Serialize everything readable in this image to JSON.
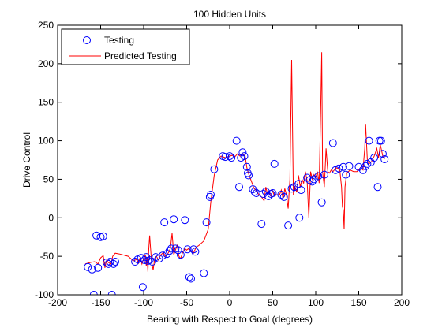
{
  "chart_data": {
    "type": "scatter",
    "title": "100 Hidden Units",
    "xlabel": "Bearing with Respect to Goal (degrees)",
    "ylabel": "Drive Control",
    "xlim": [
      -200,
      200
    ],
    "ylim": [
      -100,
      250
    ],
    "xticks": [
      -200,
      -150,
      -100,
      -50,
      0,
      50,
      100,
      150,
      200
    ],
    "yticks": [
      -100,
      -50,
      0,
      50,
      100,
      150,
      200,
      250
    ],
    "grid": false,
    "legend_position": "top-left",
    "series": [
      {
        "name": "Testing",
        "mark": "circle",
        "color": "#0000ff",
        "points": [
          [
            -165,
            -64
          ],
          [
            -160,
            -67
          ],
          [
            -158,
            -100
          ],
          [
            -155,
            -23
          ],
          [
            -153,
            -65
          ],
          [
            -150,
            -25
          ],
          [
            -147,
            -24
          ],
          [
            -143,
            -58
          ],
          [
            -141,
            -60
          ],
          [
            -139,
            -57
          ],
          [
            -137,
            -100
          ],
          [
            -135,
            -60
          ],
          [
            -133,
            -57
          ],
          [
            -110,
            -57
          ],
          [
            -107,
            -54
          ],
          [
            -103,
            -52
          ],
          [
            -101,
            -90
          ],
          [
            -99,
            -55
          ],
          [
            -97,
            -51
          ],
          [
            -95,
            -56
          ],
          [
            -93,
            -55
          ],
          [
            -90,
            -57
          ],
          [
            -86,
            -51
          ],
          [
            -82,
            -53
          ],
          [
            -78,
            -49
          ],
          [
            -76,
            -6
          ],
          [
            -73,
            -47
          ],
          [
            -70,
            -43
          ],
          [
            -68,
            -40
          ],
          [
            -65,
            -2
          ],
          [
            -63,
            -40
          ],
          [
            -60,
            -42
          ],
          [
            -57,
            -48
          ],
          [
            -52,
            -3
          ],
          [
            -49,
            -41
          ],
          [
            -47,
            -77
          ],
          [
            -45,
            -79
          ],
          [
            -42,
            -41
          ],
          [
            -40,
            -44
          ],
          [
            -30,
            -72
          ],
          [
            -27,
            -6
          ],
          [
            -23,
            27
          ],
          [
            -22,
            30
          ],
          [
            -18,
            63
          ],
          [
            -8,
            80
          ],
          [
            -5,
            79
          ],
          [
            0,
            80
          ],
          [
            2,
            78
          ],
          [
            8,
            100
          ],
          [
            11,
            40
          ],
          [
            13,
            78
          ],
          [
            15,
            85
          ],
          [
            17,
            80
          ],
          [
            20,
            66
          ],
          [
            21,
            58
          ],
          [
            22,
            55
          ],
          [
            27,
            37
          ],
          [
            29,
            34
          ],
          [
            31,
            32
          ],
          [
            37,
            -8
          ],
          [
            39,
            31
          ],
          [
            42,
            34
          ],
          [
            45,
            28
          ],
          [
            48,
            31
          ],
          [
            50,
            32
          ],
          [
            52,
            70
          ],
          [
            60,
            30
          ],
          [
            63,
            27
          ],
          [
            68,
            -10
          ],
          [
            72,
            38
          ],
          [
            75,
            40
          ],
          [
            80,
            44
          ],
          [
            81,
            0
          ],
          [
            83,
            36
          ],
          [
            90,
            52
          ],
          [
            93,
            49
          ],
          [
            96,
            47
          ],
          [
            98,
            50
          ],
          [
            103,
            54
          ],
          [
            107,
            20
          ],
          [
            110,
            56
          ],
          [
            120,
            97
          ],
          [
            123,
            62
          ],
          [
            127,
            64
          ],
          [
            132,
            66
          ],
          [
            135,
            56
          ],
          [
            139,
            67
          ],
          [
            150,
            66
          ],
          [
            155,
            62
          ],
          [
            158,
            67
          ],
          [
            160,
            70
          ],
          [
            162,
            100
          ],
          [
            164,
            72
          ],
          [
            168,
            78
          ],
          [
            172,
            40
          ],
          [
            174,
            100
          ],
          [
            176,
            100
          ],
          [
            178,
            83
          ],
          [
            180,
            76
          ]
        ]
      },
      {
        "name": "Predicted Testing",
        "mark": "line",
        "color": "#ff0000",
        "points": [
          [
            -168,
            -60
          ],
          [
            -162,
            -58
          ],
          [
            -157,
            -57
          ],
          [
            -153,
            -60
          ],
          [
            -150,
            -52
          ],
          [
            -147,
            -49
          ],
          [
            -145,
            -65
          ],
          [
            -143,
            -55
          ],
          [
            -141,
            -58
          ],
          [
            -138,
            -60
          ],
          [
            -136,
            -50
          ],
          [
            -133,
            -46
          ],
          [
            -128,
            -47
          ],
          [
            -118,
            -50
          ],
          [
            -112,
            -56
          ],
          [
            -108,
            -54
          ],
          [
            -106,
            -59
          ],
          [
            -104,
            -51
          ],
          [
            -102,
            -60
          ],
          [
            -100,
            -53
          ],
          [
            -98,
            -48
          ],
          [
            -97,
            -63
          ],
          [
            -96,
            -53
          ],
          [
            -95,
            -70
          ],
          [
            -94,
            -40
          ],
          [
            -93,
            -23
          ],
          [
            -91,
            -55
          ],
          [
            -89,
            -68
          ],
          [
            -87,
            -52
          ],
          [
            -85,
            -50
          ],
          [
            -83,
            -55
          ],
          [
            -80,
            -48
          ],
          [
            -77,
            -45
          ],
          [
            -75,
            -50
          ],
          [
            -72,
            -47
          ],
          [
            -69,
            -40
          ],
          [
            -67,
            -20
          ],
          [
            -65,
            -48
          ],
          [
            -63,
            -42
          ],
          [
            -61,
            -35
          ],
          [
            -59,
            -50
          ],
          [
            -57,
            -53
          ],
          [
            -55,
            -46
          ],
          [
            -52,
            -40
          ],
          [
            -50,
            -42
          ],
          [
            -48,
            -40
          ],
          [
            -45,
            -43
          ],
          [
            -42,
            -46
          ],
          [
            -39,
            -38
          ],
          [
            -36,
            -36
          ],
          [
            -30,
            -30
          ],
          [
            -25,
            -15
          ],
          [
            -22,
            20
          ],
          [
            -18,
            55
          ],
          [
            -14,
            75
          ],
          [
            -10,
            80
          ],
          [
            -5,
            78
          ],
          [
            0,
            80
          ],
          [
            3,
            81
          ],
          [
            6,
            79
          ],
          [
            9,
            83
          ],
          [
            12,
            80
          ],
          [
            15,
            83
          ],
          [
            18,
            80
          ],
          [
            20,
            65
          ],
          [
            22,
            57
          ],
          [
            25,
            48
          ],
          [
            28,
            39
          ],
          [
            31,
            35
          ],
          [
            34,
            30
          ],
          [
            37,
            27
          ],
          [
            40,
            22
          ],
          [
            42,
            40
          ],
          [
            44,
            30
          ],
          [
            46,
            33
          ],
          [
            48,
            28
          ],
          [
            50,
            35
          ],
          [
            52,
            28
          ],
          [
            55,
            30
          ],
          [
            58,
            30
          ],
          [
            60,
            36
          ],
          [
            62,
            25
          ],
          [
            64,
            38
          ],
          [
            66,
            30
          ],
          [
            68,
            12
          ],
          [
            70,
            50
          ],
          [
            72,
            205
          ],
          [
            74,
            30
          ],
          [
            76,
            40
          ],
          [
            78,
            33
          ],
          [
            80,
            55
          ],
          [
            82,
            40
          ],
          [
            84,
            50
          ],
          [
            86,
            45
          ],
          [
            88,
            60
          ],
          [
            90,
            48
          ],
          [
            92,
            0
          ],
          [
            94,
            60
          ],
          [
            96,
            50
          ],
          [
            98,
            56
          ],
          [
            100,
            52
          ],
          [
            102,
            60
          ],
          [
            104,
            45
          ],
          [
            106,
            150
          ],
          [
            107,
            215
          ],
          [
            108,
            60
          ],
          [
            110,
            40
          ],
          [
            112,
            90
          ],
          [
            114,
            60
          ],
          [
            116,
            58
          ],
          [
            118,
            62
          ],
          [
            120,
            60
          ],
          [
            124,
            65
          ],
          [
            128,
            62
          ],
          [
            130,
            40
          ],
          [
            131,
            15
          ],
          [
            132,
            10
          ],
          [
            133,
            -15
          ],
          [
            134,
            40
          ],
          [
            136,
            58
          ],
          [
            140,
            62
          ],
          [
            144,
            60
          ],
          [
            148,
            60
          ],
          [
            152,
            65
          ],
          [
            155,
            62
          ],
          [
            157,
            90
          ],
          [
            158,
            122
          ],
          [
            160,
            75
          ],
          [
            162,
            70
          ],
          [
            165,
            73
          ],
          [
            168,
            80
          ],
          [
            171,
            90
          ],
          [
            173,
            78
          ],
          [
            175,
            95
          ],
          [
            178,
            80
          ],
          [
            180,
            76
          ]
        ]
      }
    ]
  }
}
